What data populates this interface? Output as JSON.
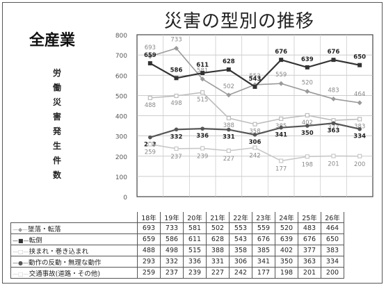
{
  "page": {
    "title": "災害の型別の推移",
    "industry_label": "全産業",
    "y_axis_label": "労働災害発生件数"
  },
  "chart_data": {
    "type": "line",
    "categories": [
      "18年",
      "19年",
      "20年",
      "21年",
      "22年",
      "23年",
      "24年",
      "25年",
      "26年"
    ],
    "ylim": [
      0,
      800
    ],
    "yticks": [
      "0",
      "100",
      "200",
      "300",
      "400",
      "500",
      "600",
      "700",
      "800"
    ],
    "grid": true,
    "legend": "table-below",
    "series": [
      {
        "name": "墜落・転落",
        "values": [
          693,
          733,
          581,
          502,
          553,
          559,
          520,
          483,
          464
        ],
        "color": "#9a9a9a"
      },
      {
        "name": "転倒",
        "values": [
          659,
          586,
          611,
          628,
          543,
          676,
          639,
          676,
          650
        ],
        "color": "#333333"
      },
      {
        "name": "挟まれ・巻き込まれ",
        "values": [
          488,
          498,
          515,
          388,
          358,
          385,
          402,
          377,
          383
        ],
        "color": "#bdbdbd"
      },
      {
        "name": "動作の反動・無理な動作",
        "values": [
          293,
          332,
          336,
          331,
          306,
          341,
          350,
          363,
          334
        ],
        "color": "#555555"
      },
      {
        "name": "交通事故(道路・その他)",
        "values": [
          259,
          237,
          239,
          227,
          242,
          177,
          198,
          201,
          200
        ],
        "color": "#c8c8c8"
      }
    ]
  }
}
